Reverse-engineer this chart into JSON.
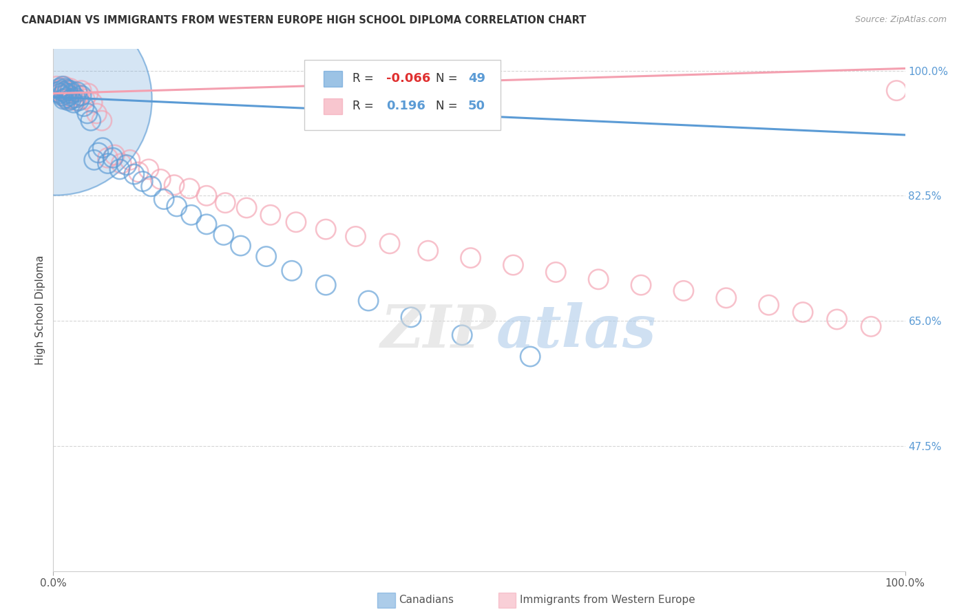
{
  "title": "CANADIAN VS IMMIGRANTS FROM WESTERN EUROPE HIGH SCHOOL DIPLOMA CORRELATION CHART",
  "source": "Source: ZipAtlas.com",
  "ylabel": "High School Diploma",
  "blue_color": "#5b9bd5",
  "pink_color": "#f4a0b0",
  "legend_R_blue": "-0.066",
  "legend_N_blue": "49",
  "legend_R_pink": "0.196",
  "legend_N_pink": "50",
  "canadians_x": [
    0.005,
    0.007,
    0.008,
    0.009,
    0.01,
    0.011,
    0.012,
    0.013,
    0.014,
    0.015,
    0.016,
    0.017,
    0.018,
    0.019,
    0.02,
    0.021,
    0.022,
    0.024,
    0.026,
    0.028,
    0.03,
    0.033,
    0.036,
    0.04,
    0.044,
    0.048,
    0.053,
    0.058,
    0.064,
    0.07,
    0.078,
    0.086,
    0.095,
    0.105,
    0.115,
    0.13,
    0.145,
    0.162,
    0.18,
    0.2,
    0.22,
    0.25,
    0.28,
    0.32,
    0.37,
    0.42,
    0.48,
    0.56,
    0.003
  ],
  "canadians_y": [
    0.97,
    0.975,
    0.968,
    0.972,
    0.965,
    0.978,
    0.96,
    0.97,
    0.975,
    0.962,
    0.968,
    0.973,
    0.958,
    0.965,
    0.972,
    0.96,
    0.968,
    0.955,
    0.962,
    0.97,
    0.958,
    0.965,
    0.95,
    0.94,
    0.93,
    0.875,
    0.885,
    0.892,
    0.87,
    0.878,
    0.862,
    0.868,
    0.855,
    0.845,
    0.838,
    0.82,
    0.81,
    0.798,
    0.785,
    0.77,
    0.755,
    0.74,
    0.72,
    0.7,
    0.678,
    0.655,
    0.63,
    0.6,
    0.96
  ],
  "canadians_size_factor": [
    1,
    1,
    1,
    1,
    1,
    1,
    1,
    1,
    1,
    1,
    1,
    1,
    1,
    1,
    1,
    1,
    1,
    1,
    1,
    1,
    1,
    1,
    1,
    1,
    1,
    1,
    1,
    1,
    1,
    1,
    1,
    1,
    1,
    1,
    1,
    1,
    1,
    1,
    1,
    1,
    1,
    1,
    1,
    1,
    1,
    1,
    1,
    1,
    8
  ],
  "immigrants_x": [
    0.004,
    0.006,
    0.008,
    0.01,
    0.012,
    0.013,
    0.015,
    0.016,
    0.018,
    0.02,
    0.022,
    0.024,
    0.027,
    0.03,
    0.033,
    0.037,
    0.041,
    0.046,
    0.051,
    0.057,
    0.064,
    0.072,
    0.08,
    0.09,
    0.1,
    0.112,
    0.126,
    0.142,
    0.16,
    0.18,
    0.202,
    0.227,
    0.255,
    0.285,
    0.32,
    0.355,
    0.395,
    0.44,
    0.49,
    0.54,
    0.59,
    0.64,
    0.69,
    0.74,
    0.79,
    0.84,
    0.88,
    0.92,
    0.96,
    0.99
  ],
  "immigrants_y": [
    0.978,
    0.972,
    0.968,
    0.975,
    0.965,
    0.978,
    0.972,
    0.96,
    0.968,
    0.975,
    0.962,
    0.97,
    0.958,
    0.965,
    0.972,
    0.96,
    0.968,
    0.955,
    0.94,
    0.93,
    0.878,
    0.882,
    0.87,
    0.875,
    0.858,
    0.862,
    0.848,
    0.84,
    0.835,
    0.825,
    0.815,
    0.808,
    0.798,
    0.788,
    0.778,
    0.768,
    0.758,
    0.748,
    0.738,
    0.728,
    0.718,
    0.708,
    0.7,
    0.692,
    0.682,
    0.672,
    0.662,
    0.652,
    0.642,
    0.972
  ],
  "xlim": [
    0.0,
    1.0
  ],
  "ylim": [
    0.3,
    1.03
  ],
  "ytick_vals": [
    0.475,
    0.65,
    0.825,
    1.0
  ],
  "ytick_labels": [
    "47.5%",
    "65.0%",
    "82.5%",
    "100.0%"
  ],
  "xtick_vals": [
    0.0,
    1.0
  ],
  "xtick_labels": [
    "0.0%",
    "100.0%"
  ]
}
